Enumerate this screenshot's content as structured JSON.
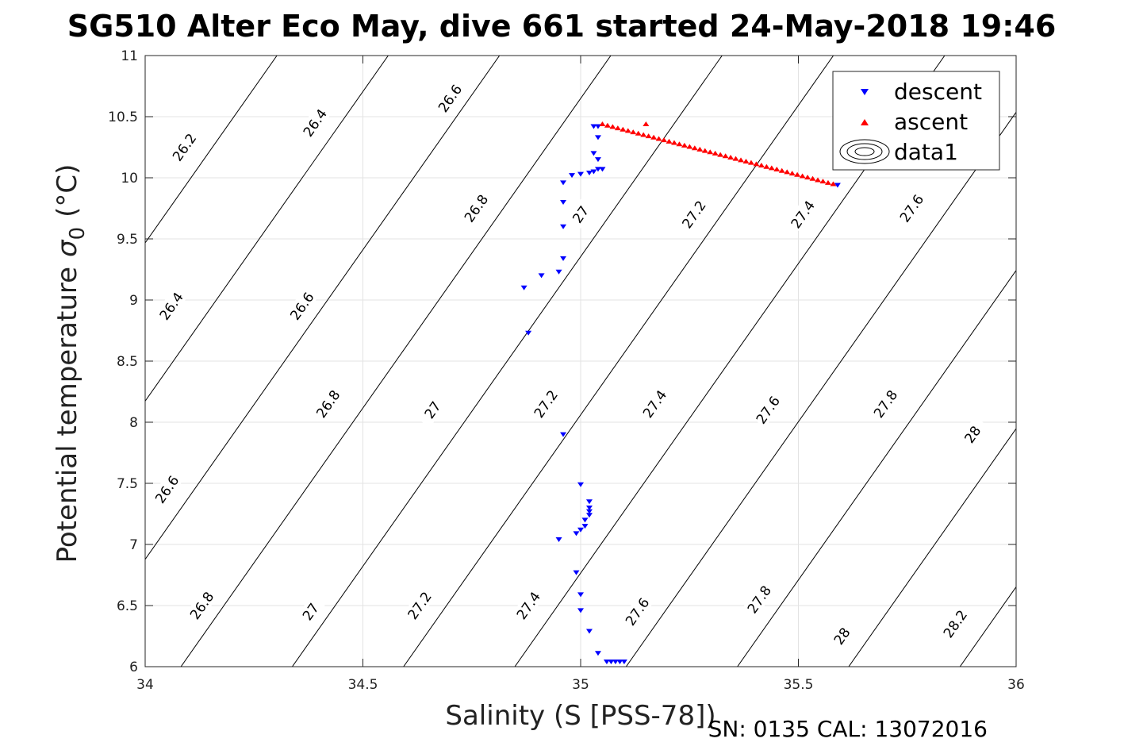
{
  "chart_data": {
    "type": "scatter",
    "title": "SG510 Alter Eco May, dive 661 started 24-May-2018 19:46",
    "xlabel": "Salinity (S [PSS-78])",
    "ylabel": "Potential temperature",
    "ylabel_symbol": "σ",
    "ylabel_subscript": "0",
    "ylabel_unit": "(°C)",
    "xlim": [
      34,
      36
    ],
    "ylim": [
      6,
      11
    ],
    "x_ticks": [
      34,
      34.5,
      35,
      35.5,
      36
    ],
    "x_tick_labels": [
      "34",
      "34.5",
      "35",
      "35.5",
      "36"
    ],
    "y_ticks": [
      6,
      6.5,
      7,
      7.5,
      8,
      8.5,
      9,
      9.5,
      10,
      10.5,
      11
    ],
    "y_tick_labels": [
      "6",
      "6.5",
      "7",
      "7.5",
      "8",
      "8.5",
      "9",
      "9.5",
      "10",
      "10.5",
      "11"
    ],
    "grid": true,
    "legend": {
      "position": "top-right",
      "entries": [
        {
          "name": "descent",
          "marker": "triangle-down",
          "color": "#0000ff"
        },
        {
          "name": "ascent",
          "marker": "triangle-up",
          "color": "#ff0000"
        },
        {
          "name": "data1",
          "marker": "contour",
          "color": "#000000"
        }
      ]
    },
    "contours": {
      "levels": [
        26.2,
        26.4,
        26.6,
        26.8,
        27.0,
        27.2,
        27.4,
        27.6,
        27.8,
        28.0,
        28.2
      ],
      "level_labels": [
        "26.2",
        "26.4",
        "26.6",
        "26.8",
        "27",
        "27.2",
        "27.4",
        "27.6",
        "27.8",
        "28",
        "28.2"
      ],
      "labels": [
        {
          "text": "26.2",
          "x": 34.09,
          "y": 10.25
        },
        {
          "text": "26.4",
          "x": 34.39,
          "y": 10.45
        },
        {
          "text": "26.6",
          "x": 34.7,
          "y": 10.65
        },
        {
          "text": "26.4",
          "x": 34.06,
          "y": 8.95
        },
        {
          "text": "26.6",
          "x": 34.36,
          "y": 8.95
        },
        {
          "text": "26.8",
          "x": 34.76,
          "y": 9.75
        },
        {
          "text": "27",
          "x": 35.0,
          "y": 9.7
        },
        {
          "text": "27.2",
          "x": 35.26,
          "y": 9.7
        },
        {
          "text": "27.4",
          "x": 35.51,
          "y": 9.7
        },
        {
          "text": "27.6",
          "x": 35.76,
          "y": 9.75
        },
        {
          "text": "26.6",
          "x": 34.05,
          "y": 7.45
        },
        {
          "text": "26.8",
          "x": 34.42,
          "y": 8.15
        },
        {
          "text": "27",
          "x": 34.66,
          "y": 8.1
        },
        {
          "text": "27.2",
          "x": 34.92,
          "y": 8.15
        },
        {
          "text": "27.4",
          "x": 35.17,
          "y": 8.15
        },
        {
          "text": "27.6",
          "x": 35.43,
          "y": 8.1
        },
        {
          "text": "27.8",
          "x": 35.7,
          "y": 8.15
        },
        {
          "text": "28",
          "x": 35.9,
          "y": 7.9
        },
        {
          "text": "26.8",
          "x": 34.13,
          "y": 6.5
        },
        {
          "text": "27",
          "x": 34.38,
          "y": 6.45
        },
        {
          "text": "27.2",
          "x": 34.63,
          "y": 6.5
        },
        {
          "text": "27.4",
          "x": 34.88,
          "y": 6.5
        },
        {
          "text": "27.6",
          "x": 35.13,
          "y": 6.45
        },
        {
          "text": "27.8",
          "x": 35.41,
          "y": 6.55
        },
        {
          "text": "28",
          "x": 35.6,
          "y": 6.25
        },
        {
          "text": "28.2",
          "x": 35.86,
          "y": 6.35
        }
      ]
    },
    "series": [
      {
        "name": "descent",
        "marker": "triangle-down",
        "color": "#0000ff",
        "points": [
          [
            35.03,
            10.42
          ],
          [
            35.04,
            10.42
          ],
          [
            35.04,
            10.33
          ],
          [
            35.03,
            10.2
          ],
          [
            35.04,
            10.15
          ],
          [
            35.04,
            10.07
          ],
          [
            35.05,
            10.07
          ],
          [
            35.03,
            10.05
          ],
          [
            35.02,
            10.04
          ],
          [
            35.0,
            10.03
          ],
          [
            34.98,
            10.02
          ],
          [
            34.96,
            9.96
          ],
          [
            34.96,
            9.8
          ],
          [
            34.96,
            9.6
          ],
          [
            34.96,
            9.34
          ],
          [
            34.95,
            9.23
          ],
          [
            34.91,
            9.2
          ],
          [
            34.87,
            9.1
          ],
          [
            34.88,
            8.73
          ],
          [
            34.96,
            7.9
          ],
          [
            35.0,
            7.49
          ],
          [
            35.02,
            7.35
          ],
          [
            35.02,
            7.3
          ],
          [
            35.02,
            7.27
          ],
          [
            35.02,
            7.24
          ],
          [
            35.01,
            7.2
          ],
          [
            35.01,
            7.15
          ],
          [
            35.0,
            7.12
          ],
          [
            34.99,
            7.09
          ],
          [
            34.95,
            7.04
          ],
          [
            34.99,
            6.77
          ],
          [
            35.0,
            6.59
          ],
          [
            35.0,
            6.46
          ],
          [
            35.02,
            6.29
          ],
          [
            35.04,
            6.11
          ],
          [
            35.06,
            6.04
          ],
          [
            35.07,
            6.04
          ],
          [
            35.08,
            6.04
          ],
          [
            35.09,
            6.04
          ],
          [
            35.1,
            6.04
          ],
          [
            35.59,
            9.94
          ]
        ]
      },
      {
        "name": "ascent",
        "marker": "triangle-up",
        "color": "#ff0000",
        "line": {
          "from": [
            35.05,
            10.44
          ],
          "to": [
            35.58,
            9.95
          ],
          "n": 46
        },
        "points": [
          [
            35.15,
            10.44
          ]
        ]
      }
    ],
    "footer": "SN: 0135  CAL: 13072016"
  }
}
